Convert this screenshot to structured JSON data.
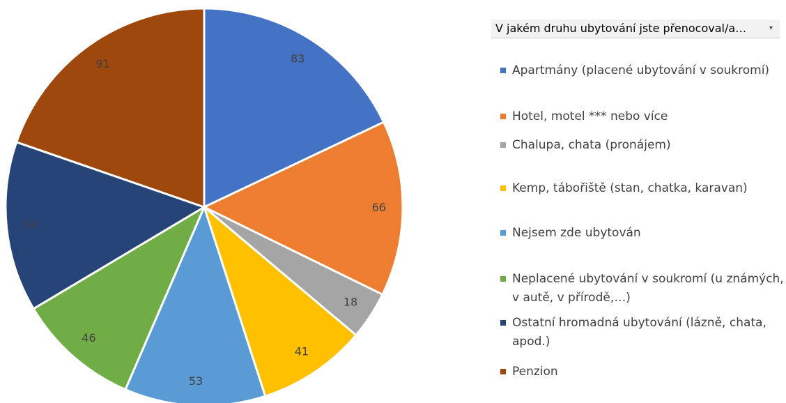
{
  "chart_data": {
    "type": "pie",
    "legend_title": "V jakém druhu ubytování jste přenocoval/a…",
    "categories": [
      "Apartmány (placené ubytování v soukromí)",
      "Hotel, motel *** nebo více",
      "Chalupa, chata (pronájem)",
      "Kemp, tábořiště (stan, chatka, karavan)",
      "Nejsem zde ubytován",
      "Neplacené ubytování v soukromí (u známých, v autě, v přírodě,…)",
      "Ostatní hromadná ubytování (lázně, chata, apod.)",
      "Penzion"
    ],
    "values": [
      83,
      66,
      18,
      41,
      53,
      46,
      64,
      91
    ],
    "colors": [
      "#4472c4",
      "#ed7d31",
      "#a5a5a5",
      "#ffc000",
      "#5b9bd5",
      "#70ad47",
      "#264478",
      "#9e480e"
    ],
    "legend": "right"
  }
}
